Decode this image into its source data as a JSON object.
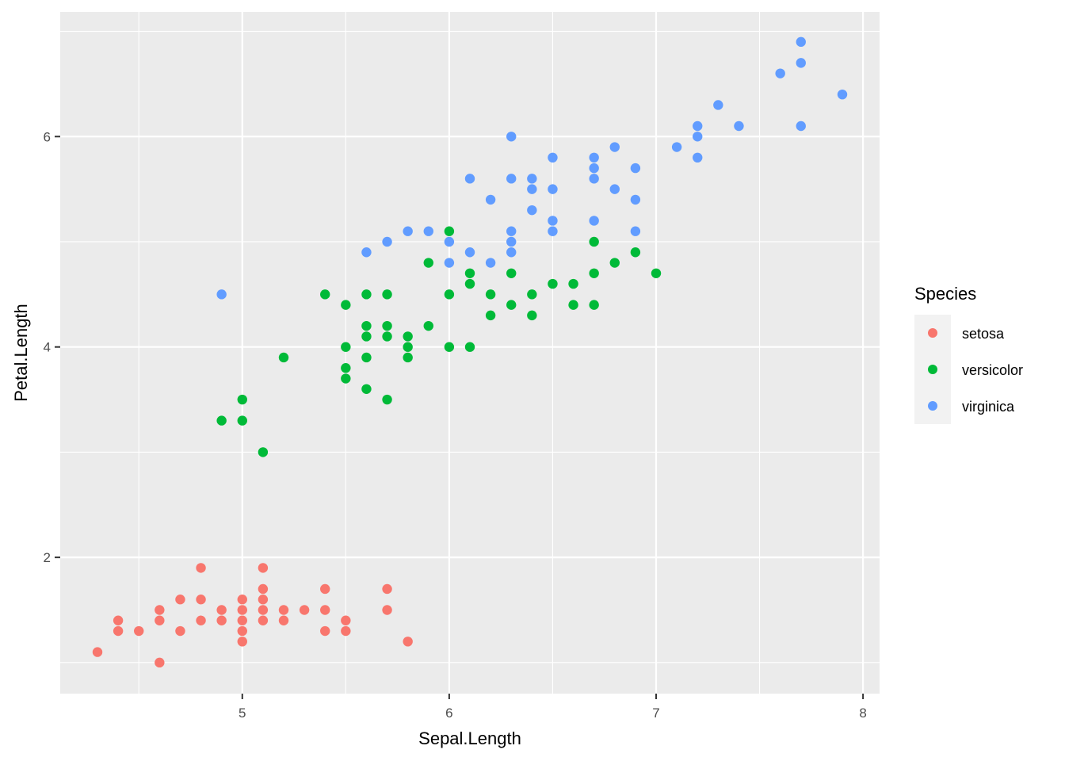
{
  "chart_data": {
    "type": "scatter",
    "title": "",
    "xlabel": "Sepal.Length",
    "ylabel": "Petal.Length",
    "xlim": [
      4.12,
      8.08
    ],
    "ylim": [
      0.705,
      7.185
    ],
    "x_ticks": [
      5,
      6,
      7,
      8
    ],
    "y_ticks": [
      2,
      4,
      6
    ],
    "x_minor": [
      4.5,
      5.5,
      6.5,
      7.5
    ],
    "y_minor": [
      1,
      3,
      5,
      7
    ],
    "grid": true,
    "legend": {
      "title": "Species",
      "position": "right"
    },
    "series": [
      {
        "name": "setosa",
        "color": "#F8766D",
        "points": [
          [
            4.3,
            1.1
          ],
          [
            4.4,
            1.3
          ],
          [
            4.4,
            1.4
          ],
          [
            4.5,
            1.3
          ],
          [
            4.6,
            1.0
          ],
          [
            4.6,
            1.4
          ],
          [
            4.6,
            1.5
          ],
          [
            4.7,
            1.3
          ],
          [
            4.7,
            1.6
          ],
          [
            4.8,
            1.4
          ],
          [
            4.8,
            1.6
          ],
          [
            4.8,
            1.9
          ],
          [
            4.9,
            1.4
          ],
          [
            4.9,
            1.5
          ],
          [
            5.0,
            1.2
          ],
          [
            5.0,
            1.3
          ],
          [
            5.0,
            1.4
          ],
          [
            5.0,
            1.5
          ],
          [
            5.0,
            1.6
          ],
          [
            5.1,
            1.4
          ],
          [
            5.1,
            1.5
          ],
          [
            5.1,
            1.6
          ],
          [
            5.1,
            1.7
          ],
          [
            5.1,
            1.9
          ],
          [
            5.2,
            1.4
          ],
          [
            5.2,
            1.5
          ],
          [
            5.3,
            1.5
          ],
          [
            5.4,
            1.3
          ],
          [
            5.4,
            1.5
          ],
          [
            5.4,
            1.7
          ],
          [
            5.5,
            1.3
          ],
          [
            5.5,
            1.4
          ],
          [
            5.7,
            1.5
          ],
          [
            5.7,
            1.7
          ],
          [
            5.8,
            1.2
          ]
        ]
      },
      {
        "name": "versicolor",
        "color": "#00BA38",
        "points": [
          [
            4.9,
            3.3
          ],
          [
            5.0,
            3.3
          ],
          [
            5.0,
            3.5
          ],
          [
            5.1,
            3.0
          ],
          [
            5.2,
            3.9
          ],
          [
            5.4,
            4.5
          ],
          [
            5.5,
            3.7
          ],
          [
            5.5,
            3.8
          ],
          [
            5.5,
            4.0
          ],
          [
            5.5,
            4.4
          ],
          [
            5.6,
            3.6
          ],
          [
            5.6,
            3.9
          ],
          [
            5.6,
            4.1
          ],
          [
            5.6,
            4.2
          ],
          [
            5.6,
            4.5
          ],
          [
            5.7,
            3.5
          ],
          [
            5.7,
            4.1
          ],
          [
            5.7,
            4.2
          ],
          [
            5.7,
            4.5
          ],
          [
            5.8,
            3.9
          ],
          [
            5.8,
            4.0
          ],
          [
            5.8,
            4.1
          ],
          [
            5.9,
            4.2
          ],
          [
            5.9,
            4.8
          ],
          [
            6.0,
            4.0
          ],
          [
            6.0,
            4.5
          ],
          [
            6.0,
            5.1
          ],
          [
            6.1,
            4.0
          ],
          [
            6.1,
            4.6
          ],
          [
            6.1,
            4.7
          ],
          [
            6.2,
            4.3
          ],
          [
            6.2,
            4.5
          ],
          [
            6.3,
            4.4
          ],
          [
            6.3,
            4.7
          ],
          [
            6.4,
            4.3
          ],
          [
            6.4,
            4.5
          ],
          [
            6.5,
            4.6
          ],
          [
            6.6,
            4.4
          ],
          [
            6.6,
            4.6
          ],
          [
            6.7,
            4.4
          ],
          [
            6.7,
            4.7
          ],
          [
            6.7,
            5.0
          ],
          [
            6.8,
            4.8
          ],
          [
            6.9,
            4.9
          ],
          [
            7.0,
            4.7
          ]
        ]
      },
      {
        "name": "virginica",
        "color": "#619CFF",
        "points": [
          [
            4.9,
            4.5
          ],
          [
            5.6,
            4.9
          ],
          [
            5.7,
            5.0
          ],
          [
            5.8,
            5.1
          ],
          [
            5.9,
            5.1
          ],
          [
            6.0,
            4.8
          ],
          [
            6.0,
            5.0
          ],
          [
            6.1,
            4.9
          ],
          [
            6.1,
            5.6
          ],
          [
            6.2,
            4.8
          ],
          [
            6.2,
            5.4
          ],
          [
            6.3,
            4.9
          ],
          [
            6.3,
            5.0
          ],
          [
            6.3,
            5.1
          ],
          [
            6.3,
            5.6
          ],
          [
            6.3,
            6.0
          ],
          [
            6.4,
            5.3
          ],
          [
            6.4,
            5.5
          ],
          [
            6.4,
            5.6
          ],
          [
            6.5,
            5.1
          ],
          [
            6.5,
            5.2
          ],
          [
            6.5,
            5.5
          ],
          [
            6.5,
            5.8
          ],
          [
            6.7,
            5.2
          ],
          [
            6.7,
            5.6
          ],
          [
            6.7,
            5.7
          ],
          [
            6.7,
            5.8
          ],
          [
            6.8,
            5.5
          ],
          [
            6.8,
            5.9
          ],
          [
            6.9,
            5.1
          ],
          [
            6.9,
            5.4
          ],
          [
            6.9,
            5.7
          ],
          [
            7.1,
            5.9
          ],
          [
            7.2,
            5.8
          ],
          [
            7.2,
            6.0
          ],
          [
            7.2,
            6.1
          ],
          [
            7.3,
            6.3
          ],
          [
            7.4,
            6.1
          ],
          [
            7.6,
            6.6
          ],
          [
            7.7,
            6.1
          ],
          [
            7.7,
            6.7
          ],
          [
            7.7,
            6.9
          ],
          [
            7.9,
            6.4
          ]
        ]
      }
    ]
  },
  "axes": {
    "x": {
      "title": "Sepal.Length",
      "ticks": [
        "5",
        "6",
        "7",
        "8"
      ]
    },
    "y": {
      "title": "Petal.Length",
      "ticks": [
        "2",
        "4",
        "6"
      ]
    }
  },
  "legend": {
    "title": "Species",
    "items": [
      {
        "label": "setosa",
        "color": "#F8766D"
      },
      {
        "label": "versicolor",
        "color": "#00BA38"
      },
      {
        "label": "virginica",
        "color": "#619CFF"
      }
    ]
  },
  "style": {
    "panel_bg": "#EBEBEB",
    "grid_major": "#FFFFFF",
    "legend_key_bg": "#F2F2F2",
    "tick_color": "#333333"
  }
}
